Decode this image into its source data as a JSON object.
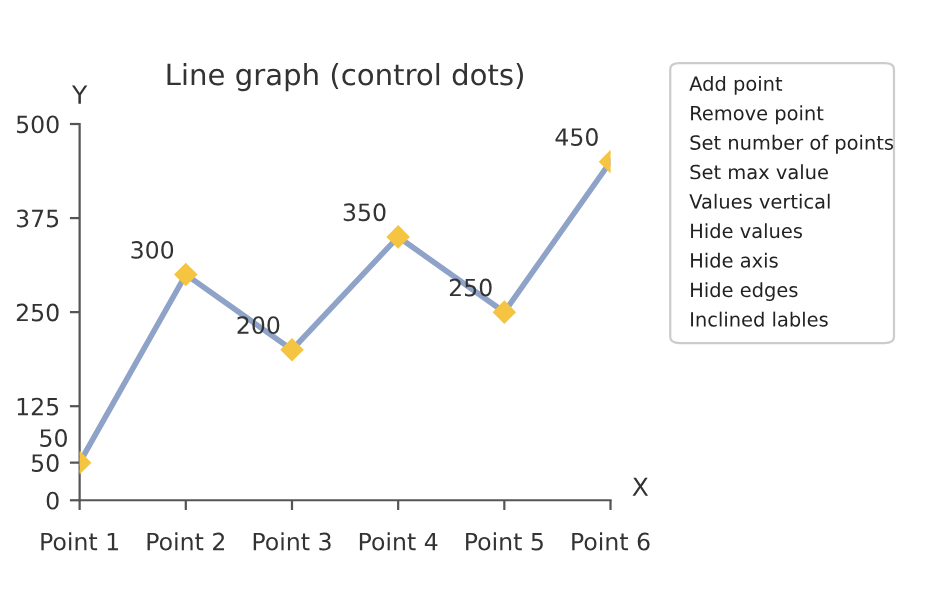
{
  "chart_data": {
    "type": "line",
    "title": "Line graph (control dots)",
    "xlabel": "X",
    "ylabel": "Y",
    "categories": [
      "Point 1",
      "Point 2",
      "Point 3",
      "Point 4",
      "Point 5",
      "Point 6"
    ],
    "series": [
      {
        "color": "#8fa3c8",
        "values": [
          50,
          300,
          200,
          350,
          250,
          450
        ]
      }
    ],
    "ylim": [
      0,
      500
    ],
    "yticks": [
      0,
      50,
      125,
      250,
      375,
      500
    ],
    "marker": "diamond",
    "data_labels": true,
    "grid": false,
    "legend": false,
    "annotations": [
      "Add point",
      "Remove point",
      "Set number of points",
      "Set max value",
      "Values vertical",
      "Hide values",
      "Hide axis",
      "Hide edges",
      "Inclined lables"
    ]
  }
}
